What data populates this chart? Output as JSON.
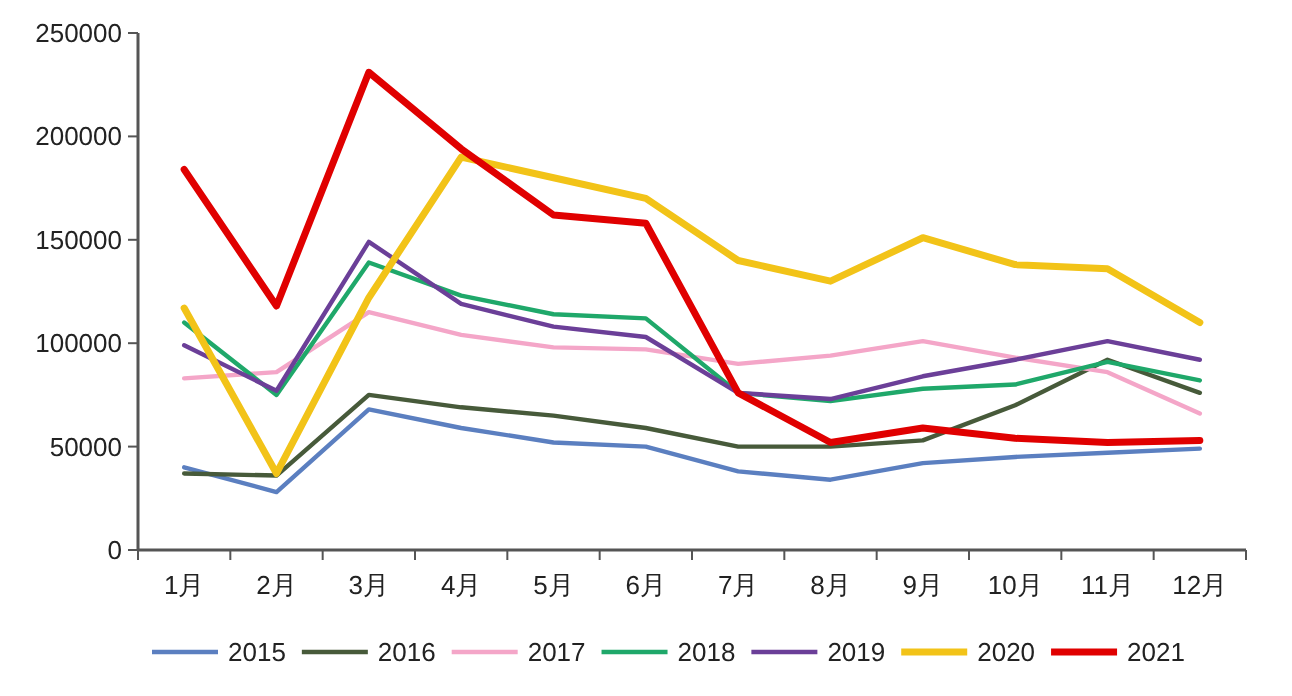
{
  "chart_data": {
    "type": "line",
    "categories": [
      "1月",
      "2月",
      "3月",
      "4月",
      "5月",
      "6月",
      "7月",
      "8月",
      "9月",
      "10月",
      "11月",
      "12月"
    ],
    "ylim": [
      0,
      250000
    ],
    "yticks": [
      0,
      50000,
      100000,
      150000,
      200000,
      250000
    ],
    "grid": false,
    "legend": "bottom",
    "marker": "none",
    "line_style": "solid",
    "series": [
      {
        "name": "2015",
        "color": "#5b7fc0",
        "values": [
          40000,
          28000,
          68000,
          59000,
          52000,
          50000,
          38000,
          34000,
          42000,
          45000,
          47000,
          49000
        ]
      },
      {
        "name": "2016",
        "color": "#475a3a",
        "values": [
          37000,
          36000,
          75000,
          69000,
          65000,
          59000,
          50000,
          50000,
          53000,
          70000,
          92000,
          76000
        ]
      },
      {
        "name": "2017",
        "color": "#f4a6c8",
        "values": [
          83000,
          86000,
          115000,
          104000,
          98000,
          97000,
          90000,
          94000,
          101000,
          93000,
          86000,
          66000
        ]
      },
      {
        "name": "2018",
        "color": "#1fa86a",
        "values": [
          110000,
          75000,
          139000,
          123000,
          114000,
          112000,
          76000,
          72000,
          78000,
          80000,
          91000,
          82000
        ]
      },
      {
        "name": "2019",
        "color": "#6b3f98",
        "values": [
          99000,
          77000,
          149000,
          119000,
          108000,
          103000,
          76000,
          73000,
          84000,
          92000,
          101000,
          92000
        ]
      },
      {
        "name": "2020",
        "color": "#f2c318",
        "values": [
          117000,
          37000,
          122000,
          190000,
          180000,
          170000,
          140000,
          130000,
          151000,
          138000,
          136000,
          110000
        ]
      },
      {
        "name": "2021",
        "color": "#e00000",
        "values": [
          184000,
          118000,
          231000,
          194000,
          162000,
          158000,
          76000,
          52000,
          59000,
          54000,
          52000,
          53000
        ]
      }
    ]
  }
}
